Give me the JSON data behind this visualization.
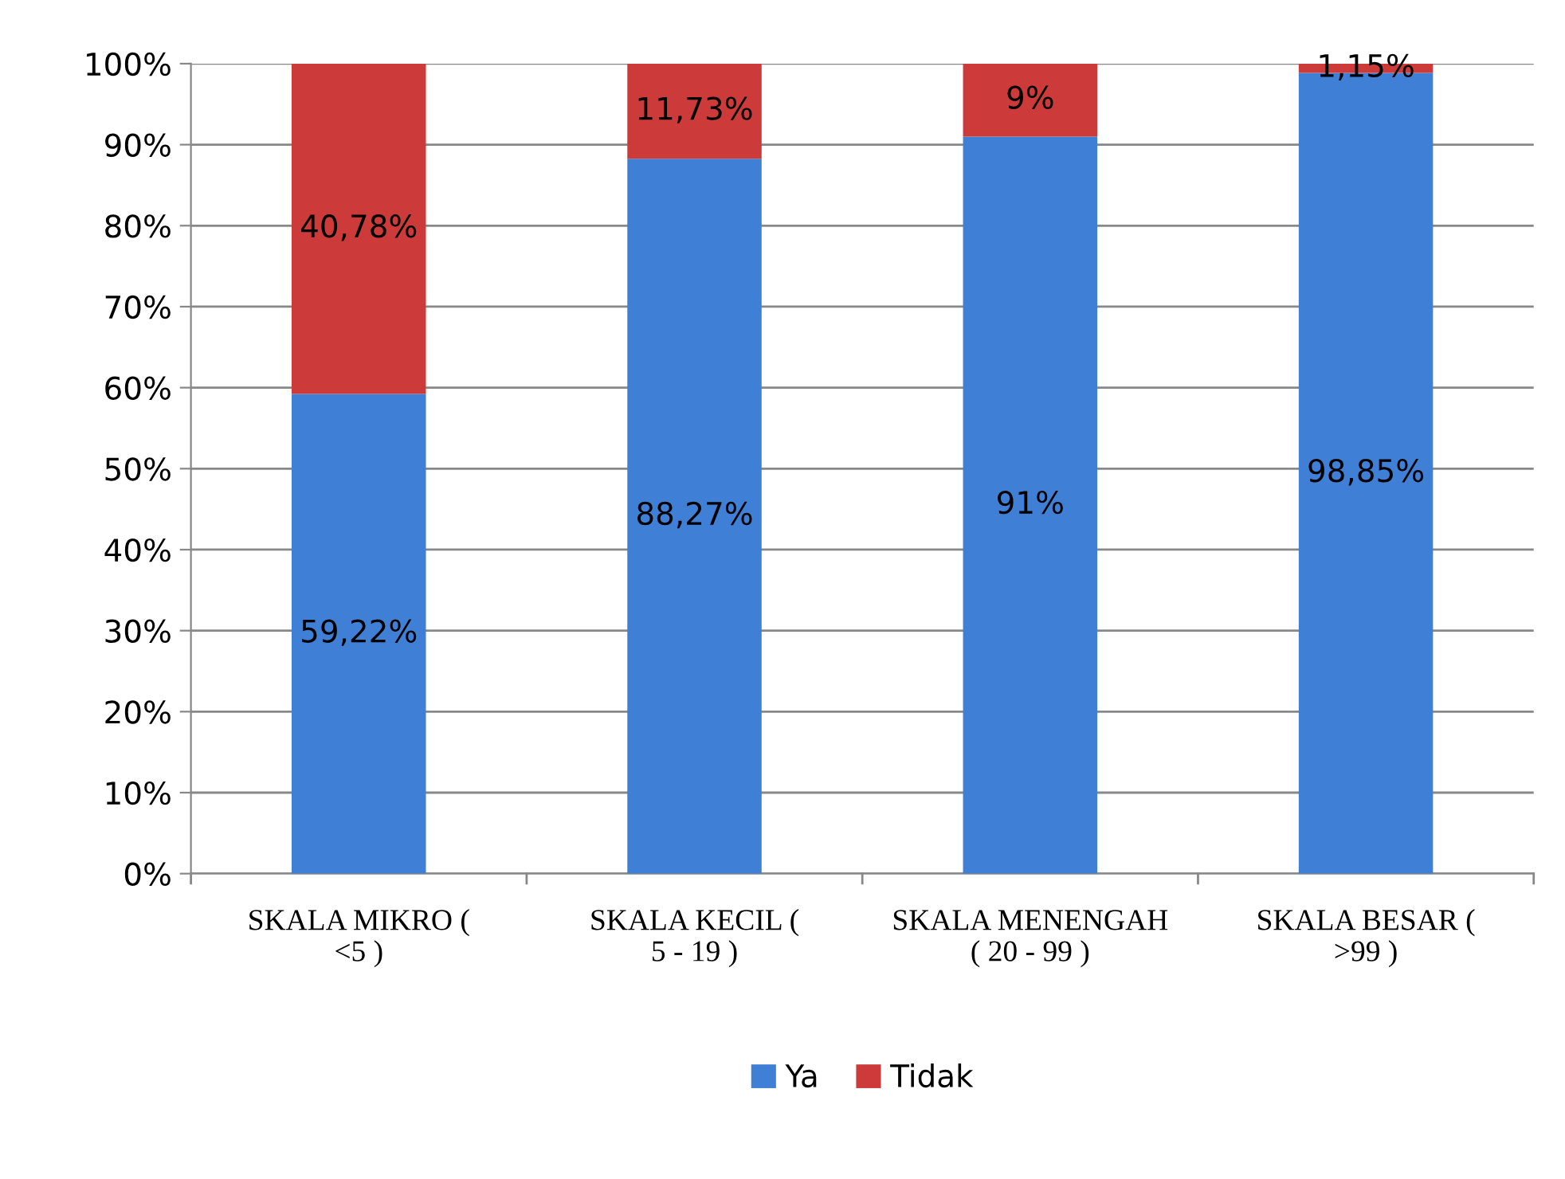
{
  "chart_data": {
    "type": "bar",
    "stacked": true,
    "categories": [
      "SKALA MIKRO ( <5 )",
      "SKALA KECIL ( 5 - 19 )",
      "SKALA MENENGAH ( 20 - 99 )",
      "SKALA BESAR ( >99 )"
    ],
    "series": [
      {
        "name": "Ya",
        "color": "#3f7fd6",
        "values": [
          59.22,
          88.27,
          91,
          98.85
        ],
        "value_labels": [
          "59,22%",
          "88,27%",
          "91%",
          "98,85%"
        ]
      },
      {
        "name": "Tidak",
        "color": "#cc3a3a",
        "values": [
          40.78,
          11.73,
          9,
          1.15
        ],
        "value_labels": [
          "40,78%",
          "11,73%",
          "9%",
          "1,15%"
        ]
      }
    ],
    "ylim": [
      0,
      100
    ],
    "yticks": [
      {
        "value": 0,
        "label": "0%"
      },
      {
        "value": 10,
        "label": "10%"
      },
      {
        "value": 20,
        "label": "20%"
      },
      {
        "value": 30,
        "label": "30%"
      },
      {
        "value": 40,
        "label": "40%"
      },
      {
        "value": 50,
        "label": "50%"
      },
      {
        "value": 60,
        "label": "60%"
      },
      {
        "value": 70,
        "label": "70%"
      },
      {
        "value": 80,
        "label": "80%"
      },
      {
        "value": 90,
        "label": "90%"
      },
      {
        "value": 100,
        "label": "100%"
      }
    ],
    "grid": "y",
    "legend": "bottom"
  }
}
